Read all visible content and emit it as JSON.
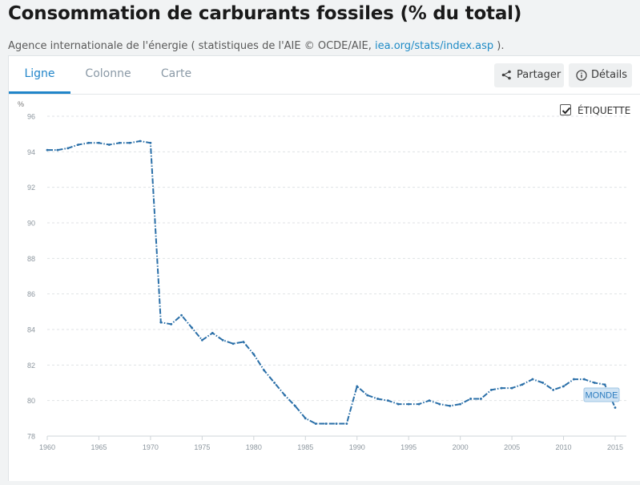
{
  "header": {
    "title": "Consommation de carburants fossiles (% du total)",
    "source_prefix": "Agence internationale de l'énergie ( statistiques de l'AIE © OCDE/AIE, ",
    "source_link": "iea.org/stats/index.asp",
    "source_suffix": " )."
  },
  "tabs": [
    {
      "label": "Ligne",
      "active": true
    },
    {
      "label": "Colonne",
      "active": false
    },
    {
      "label": "Carte",
      "active": false
    }
  ],
  "toolbar": {
    "share_label": "Partager",
    "details_label": "Détails"
  },
  "legend": {
    "checkbox_label": "ÉTIQUETTE",
    "checked": true
  },
  "colors": {
    "accent": "#2185c9",
    "line": "#2a6fa8",
    "label_bg": "#cfe3f4"
  },
  "chart_data": {
    "type": "line",
    "ylabel": "%",
    "xlim": [
      1960,
      2015
    ],
    "ylim": [
      78,
      96
    ],
    "x_ticks": [
      1960,
      1965,
      1970,
      1975,
      1980,
      1985,
      1990,
      1995,
      2000,
      2005,
      2010,
      2015
    ],
    "y_ticks": [
      78,
      80,
      82,
      84,
      86,
      88,
      90,
      92,
      94,
      96
    ],
    "grid": true,
    "series": [
      {
        "name": "MONDE",
        "x": [
          1960,
          1961,
          1962,
          1963,
          1964,
          1965,
          1966,
          1967,
          1968,
          1969,
          1970,
          1971,
          1972,
          1973,
          1974,
          1975,
          1976,
          1977,
          1978,
          1979,
          1980,
          1981,
          1982,
          1983,
          1984,
          1985,
          1986,
          1987,
          1988,
          1989,
          1990,
          1991,
          1992,
          1993,
          1994,
          1995,
          1996,
          1997,
          1998,
          1999,
          2000,
          2001,
          2002,
          2003,
          2004,
          2005,
          2006,
          2007,
          2008,
          2009,
          2010,
          2011,
          2012,
          2013,
          2014,
          2015
        ],
        "values": [
          94.1,
          94.1,
          94.2,
          94.4,
          94.5,
          94.5,
          94.4,
          94.5,
          94.5,
          94.6,
          94.5,
          84.4,
          84.3,
          84.8,
          84.1,
          83.4,
          83.8,
          83.4,
          83.2,
          83.3,
          82.6,
          81.7,
          81.0,
          80.3,
          79.7,
          79.0,
          78.7,
          78.7,
          78.7,
          78.7,
          80.8,
          80.3,
          80.1,
          80.0,
          79.8,
          79.8,
          79.8,
          80.0,
          79.8,
          79.7,
          79.8,
          80.1,
          80.1,
          80.6,
          80.7,
          80.7,
          80.9,
          81.2,
          81.0,
          80.6,
          80.8,
          81.2,
          81.2,
          81.0,
          80.9,
          79.6
        ]
      }
    ]
  }
}
